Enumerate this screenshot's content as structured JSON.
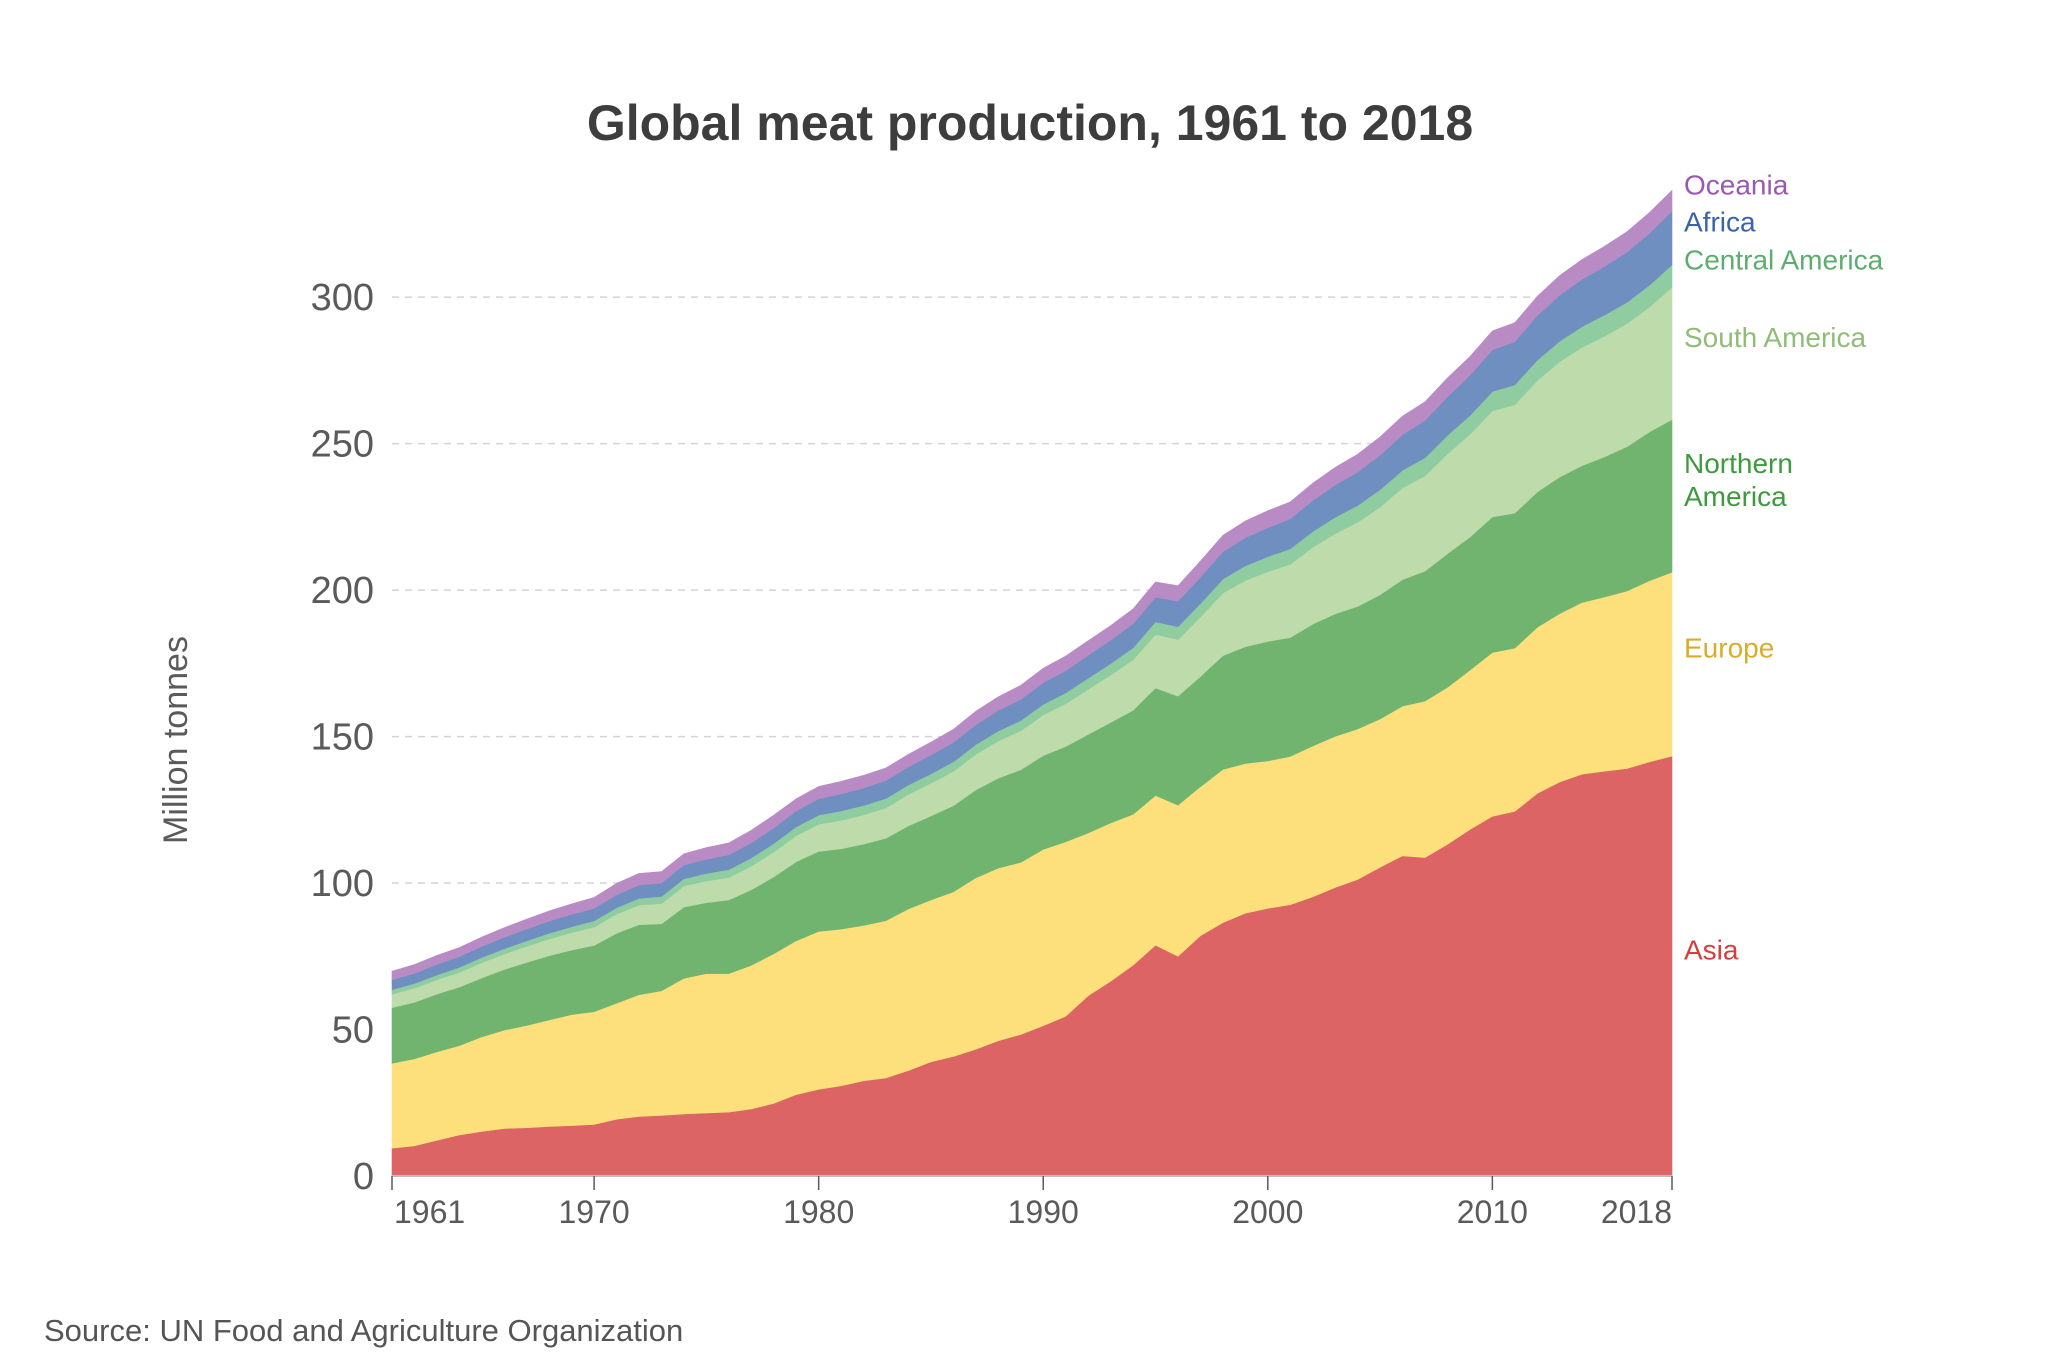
{
  "chart_data": {
    "type": "area",
    "stacked": true,
    "title": "Global meat production, 1961 to 2018",
    "ylabel": "Million tonnes",
    "xlabel": "",
    "source": "Source: UN Food and Agriculture Organization",
    "xlim": [
      1961,
      2018
    ],
    "ylim": [
      0,
      340
    ],
    "x_ticks": [
      {
        "value": 1961,
        "label": "1961"
      },
      {
        "value": 1970,
        "label": "1970"
      },
      {
        "value": 1980,
        "label": "1980"
      },
      {
        "value": 1990,
        "label": "1990"
      },
      {
        "value": 2000,
        "label": "2000"
      },
      {
        "value": 2010,
        "label": "2010"
      },
      {
        "value": 2018,
        "label": "2018"
      }
    ],
    "y_ticks": [
      {
        "value": 0,
        "label": "0"
      },
      {
        "value": 50,
        "label": "50"
      },
      {
        "value": 100,
        "label": "100"
      },
      {
        "value": 150,
        "label": "150"
      },
      {
        "value": 200,
        "label": "200"
      },
      {
        "value": 250,
        "label": "250"
      },
      {
        "value": 300,
        "label": "300"
      }
    ],
    "grid": "horizontal dashed",
    "legend": "direct labels at right end of areas",
    "x": [
      1961,
      1962,
      1963,
      1964,
      1965,
      1966,
      1967,
      1968,
      1969,
      1970,
      1971,
      1972,
      1973,
      1974,
      1975,
      1976,
      1977,
      1978,
      1979,
      1980,
      1981,
      1982,
      1983,
      1984,
      1985,
      1986,
      1987,
      1988,
      1989,
      1990,
      1991,
      1992,
      1993,
      1994,
      1995,
      1996,
      1997,
      1998,
      1999,
      2000,
      2001,
      2002,
      2003,
      2004,
      2005,
      2006,
      2007,
      2008,
      2009,
      2010,
      2011,
      2012,
      2013,
      2014,
      2015,
      2016,
      2017,
      2018
    ],
    "series": [
      {
        "name": "Asia",
        "color": "#dc6465",
        "label_color": "#d63e3e",
        "label_lines": [
          "Asia"
        ],
        "values": [
          9.5,
          10.3,
          12.2,
          14,
          15.2,
          16.2,
          16.5,
          16.9,
          17.2,
          17.6,
          19.4,
          20.3,
          20.7,
          21.2,
          21.5,
          21.8,
          22.9,
          24.8,
          27.8,
          29.6,
          30.8,
          32.5,
          33.5,
          36,
          39,
          40.8,
          43.3,
          46.2,
          48.3,
          51.3,
          54.5,
          61.5,
          66.5,
          72,
          78.8,
          75,
          82,
          86.5,
          89.7,
          91.4,
          92.6,
          95.3,
          98.5,
          101.2,
          105.4,
          109.3,
          108.7,
          113.2,
          118.3,
          122.8,
          124.5,
          130.6,
          134.5,
          137.2,
          138.2,
          139.1,
          141.4,
          143.3
        ]
      },
      {
        "name": "Europe",
        "color": "#fde07c",
        "label_color": "#d9ad28",
        "label_lines": [
          "Europe"
        ],
        "values": [
          29,
          29.7,
          30.2,
          30.5,
          32.3,
          33.6,
          34.9,
          36.4,
          37.9,
          38.5,
          39.6,
          41.6,
          42.5,
          46.3,
          47.6,
          47.3,
          49,
          51.1,
          52.5,
          53.9,
          53.5,
          53,
          53.7,
          55.2,
          55.2,
          56.2,
          58.5,
          58.9,
          58.8,
          60.2,
          59.6,
          55.6,
          54,
          51.5,
          51.1,
          51.6,
          50.9,
          52.3,
          51.1,
          50.3,
          50.6,
          51.5,
          51.6,
          51.4,
          50.6,
          51.1,
          53.4,
          53.6,
          54.4,
          55.9,
          55.7,
          56.7,
          57.5,
          58.6,
          59.5,
          60.6,
          61.8,
          62.8
        ]
      },
      {
        "name": "Northern America",
        "color": "#70b470",
        "label_color": "#3e9a3e",
        "label_lines": [
          "Northern",
          "America"
        ],
        "values": [
          19,
          19.3,
          19.7,
          20,
          20.1,
          20.7,
          21.5,
          21.9,
          22,
          22.6,
          23.9,
          23.9,
          22.9,
          24.3,
          24.2,
          25.1,
          25.8,
          26.2,
          27,
          27.3,
          27.4,
          27.8,
          28.1,
          28.3,
          28.7,
          29.4,
          30,
          30.7,
          31.6,
          32,
          32.5,
          33.6,
          34.3,
          35.5,
          36.7,
          37.2,
          37.6,
          38.8,
          39.9,
          40.8,
          40.6,
          41.6,
          41.8,
          41.8,
          42.4,
          43.2,
          44.4,
          45.6,
          45.4,
          46.3,
          46.1,
          46.2,
          46.6,
          46.7,
          47.8,
          49.3,
          50.8,
          52.1
        ]
      },
      {
        "name": "South America",
        "color": "#bddbab",
        "label_color": "#8fbd78",
        "label_lines": [
          "South America"
        ],
        "values": [
          4.6,
          4.8,
          4.9,
          5,
          5.2,
          5.3,
          5.5,
          5.7,
          6,
          6.3,
          6.5,
          6.7,
          6.9,
          7.2,
          7.4,
          7.7,
          8.1,
          8.5,
          8.9,
          9.3,
          9.7,
          10,
          10.4,
          10.8,
          11.2,
          11.7,
          12.2,
          12.7,
          13.3,
          13.9,
          14.6,
          15.4,
          16.2,
          17.2,
          18.3,
          19.3,
          20.3,
          21.4,
          22.6,
          23.8,
          25,
          26.2,
          27.4,
          28.7,
          30,
          31.3,
          32.5,
          34.1,
          35.1,
          36.2,
          37,
          38.1,
          39.4,
          40.4,
          41.2,
          42,
          42.6,
          45.2
        ]
      },
      {
        "name": "Central America",
        "color": "#8fcc9f",
        "label_color": "#5cae6e",
        "label_lines": [
          "Central America"
        ],
        "values": [
          1.5,
          1.6,
          1.6,
          1.7,
          1.8,
          1.8,
          1.9,
          2,
          2,
          2.1,
          2.2,
          2.3,
          2.4,
          2.5,
          2.6,
          2.7,
          2.8,
          2.9,
          3,
          3.1,
          3.2,
          3.2,
          3.2,
          3.2,
          3.2,
          3.3,
          3.3,
          3.4,
          3.5,
          3.6,
          3.7,
          3.8,
          3.9,
          4.1,
          4.3,
          4.4,
          4.6,
          4.8,
          5,
          5.1,
          5.3,
          5.4,
          5.6,
          5.8,
          5.9,
          6,
          6.2,
          6.3,
          6.4,
          6.6,
          6.8,
          6.9,
          7,
          7.1,
          7.2,
          7.3,
          7.5,
          7.7
        ]
      },
      {
        "name": "Africa",
        "color": "#6e8fc0",
        "label_color": "#3a63ae",
        "label_lines": [
          "Africa"
        ],
        "values": [
          3.4,
          3.5,
          3.6,
          3.7,
          3.8,
          3.9,
          4,
          4.1,
          4.2,
          4.3,
          4.4,
          4.5,
          4.6,
          4.7,
          4.8,
          5,
          5.1,
          5.3,
          5.4,
          5.6,
          5.8,
          5.9,
          6.1,
          6.2,
          6.4,
          6.6,
          6.8,
          7,
          7.2,
          7.4,
          7.6,
          7.8,
          8,
          8.2,
          8.4,
          8.7,
          9,
          9.3,
          9.6,
          9.9,
          10.2,
          10.6,
          11,
          11.4,
          11.8,
          12.2,
          12.7,
          13.2,
          13.7,
          14.2,
          14.7,
          15.2,
          15.7,
          16.1,
          16.6,
          17.1,
          17.7,
          18.2
        ]
      },
      {
        "name": "Oceania",
        "color": "#b98bc4",
        "label_color": "#9a59b0",
        "label_lines": [
          "Oceania"
        ],
        "values": [
          2.9,
          3,
          3.1,
          3.1,
          3.2,
          3.3,
          3.4,
          3.5,
          3.6,
          3.7,
          3.9,
          4,
          3.9,
          3.8,
          4,
          4.1,
          4.3,
          4.4,
          4.2,
          4.2,
          4.3,
          4.4,
          4.3,
          4.3,
          4.4,
          4.5,
          4.6,
          4.7,
          4.8,
          4.9,
          5,
          5,
          5,
          5.1,
          5.2,
          5.3,
          5.5,
          5.6,
          5.7,
          5.8,
          5.8,
          5.9,
          6,
          6.1,
          6.2,
          6.3,
          6.4,
          6.4,
          6.4,
          6.5,
          6.5,
          6.6,
          6.7,
          6.8,
          6.9,
          7,
          7.1,
          7.2
        ]
      }
    ]
  }
}
